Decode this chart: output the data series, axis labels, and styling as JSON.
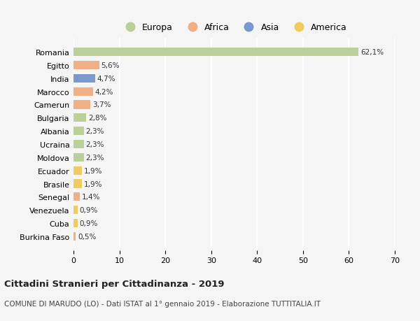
{
  "countries": [
    "Romania",
    "Egitto",
    "India",
    "Marocco",
    "Camerun",
    "Bulgaria",
    "Albania",
    "Ucraina",
    "Moldova",
    "Ecuador",
    "Brasile",
    "Senegal",
    "Venezuela",
    "Cuba",
    "Burkina Faso"
  ],
  "values": [
    62.1,
    5.6,
    4.7,
    4.2,
    3.7,
    2.8,
    2.3,
    2.3,
    2.3,
    1.9,
    1.9,
    1.4,
    0.9,
    0.9,
    0.5
  ],
  "labels": [
    "62,1%",
    "5,6%",
    "4,7%",
    "4,2%",
    "3,7%",
    "2,8%",
    "2,3%",
    "2,3%",
    "2,3%",
    "1,9%",
    "1,9%",
    "1,4%",
    "0,9%",
    "0,9%",
    "0,5%"
  ],
  "continents": [
    "Europa",
    "Africa",
    "Asia",
    "Africa",
    "Africa",
    "Europa",
    "Europa",
    "Europa",
    "Europa",
    "America",
    "America",
    "Africa",
    "America",
    "America",
    "Africa"
  ],
  "colors": {
    "Europa": "#b5cc8e",
    "Africa": "#f0a878",
    "Asia": "#6e8fcb",
    "America": "#f0c850"
  },
  "xlim": [
    0,
    70
  ],
  "xticks": [
    0,
    10,
    20,
    30,
    40,
    50,
    60,
    70
  ],
  "title": "Cittadini Stranieri per Cittadinanza - 2019",
  "subtitle": "COMUNE DI MARUDO (LO) - Dati ISTAT al 1° gennaio 2019 - Elaborazione TUTTITALIA.IT",
  "background_color": "#f5f5f5",
  "grid_color": "#ffffff",
  "legend_order": [
    "Europa",
    "Africa",
    "Asia",
    "America"
  ]
}
